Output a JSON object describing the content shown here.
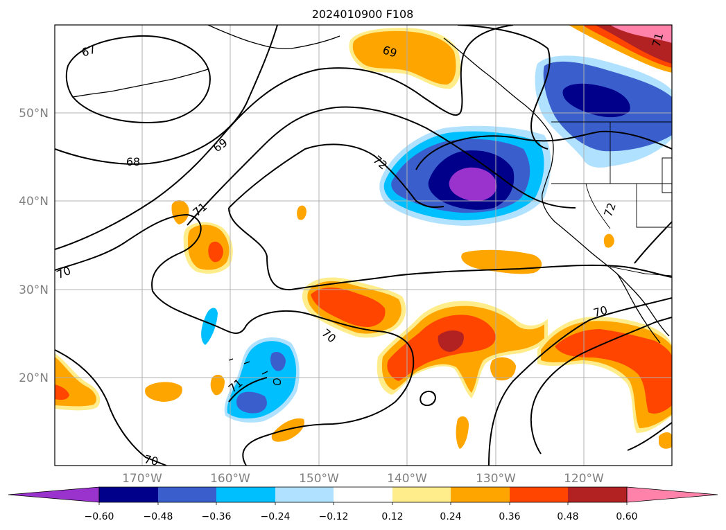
{
  "title": "2024010900 F108",
  "map": {
    "lon_labels": [
      "170°W",
      "160°W",
      "150°W",
      "140°W",
      "130°W",
      "120°W"
    ],
    "lat_labels": [
      "50°N",
      "40°N",
      "30°N",
      "20°N"
    ],
    "contour_labels": [
      "67",
      "68",
      "69",
      "69",
      "71",
      "70",
      "72",
      "72",
      "70",
      "71",
      "70",
      "70",
      "71"
    ]
  },
  "colorbar": {
    "tick_labels": [
      "−0.60",
      "−0.48",
      "−0.36",
      "−0.24",
      "−0.12",
      "0.12",
      "0.24",
      "0.36",
      "0.48",
      "0.60"
    ],
    "colors": [
      "#9a32cd",
      "#00008b",
      "#3a5fcd",
      "#00bfff",
      "#b0e2ff",
      "#ffffff",
      "#ffec8b",
      "#ffa500",
      "#ff4500",
      "#b22222",
      "#ff82ab"
    ]
  }
}
